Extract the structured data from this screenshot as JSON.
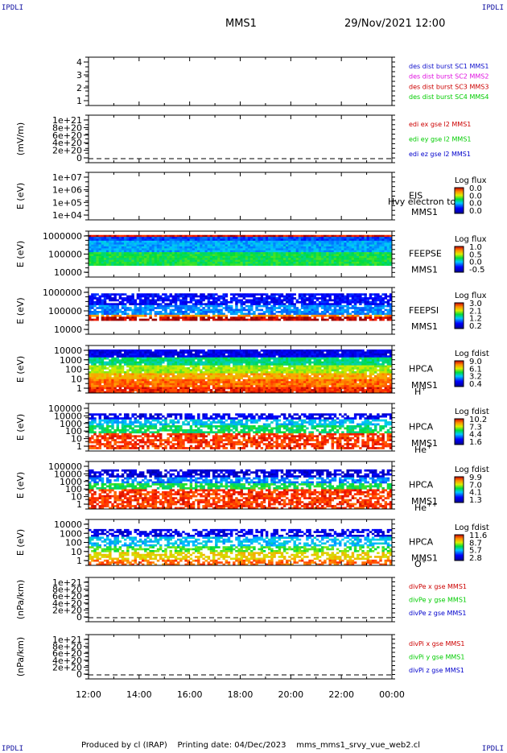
{
  "corner_label": "IPDLI",
  "header": {
    "mission": "MMS1",
    "date": "29/Nov/2021 12:00"
  },
  "footer": {
    "produced": "Produced by cl (IRAP)",
    "printing": "Printing date: 04/Dec/2023",
    "file": "mms_mms1_srvy_vue_web2.cl"
  },
  "x_ticks": [
    "12:00",
    "14:00",
    "16:00",
    "18:00",
    "20:00",
    "22:00",
    "00:00"
  ],
  "colors": {
    "c1": "#1010cc",
    "c2": "#e010e0",
    "c3": "#cc0000",
    "c4": "#00cc00",
    "red": "#cc0000",
    "green": "#00cc00",
    "blue": "#0000cc"
  },
  "chart_data": [
    {
      "type": "line",
      "panel": "burst",
      "ylabel": "",
      "yticks": [
        "4",
        "3",
        "2",
        "1"
      ],
      "ylim": [
        0.5,
        4.5
      ],
      "legend": [
        "des dist burst SC1 MMS1",
        "des dist burst SC2 MMS2",
        "des dist burst SC3 MMS3",
        "des dist burst SC4 MMS4"
      ]
    },
    {
      "type": "line",
      "panel": "edi",
      "ylabel": "(mV/m)",
      "yticks": [
        "1e+21",
        "8e+20",
        "6e+20",
        "4e+20",
        "2e+20",
        "0"
      ],
      "ylim": [
        0,
        1e+21
      ],
      "legend": [
        "edi ex gse l2 MMS1",
        "edi ey gse l2 MMS1",
        "edi ez gse l2 MMS1"
      ]
    },
    {
      "type": "heatmap",
      "panel": "eis",
      "ylabel": "E (eV)",
      "yticks": [
        "1e+07",
        "1e+06",
        "1e+05",
        "1e+04"
      ],
      "ylim": [
        10000,
        10000000
      ],
      "label": [
        "EIS",
        "MMS1"
      ],
      "overlay": "Hvy electron to",
      "cb_title": "Log flux",
      "cb_ticks": [
        "0.0",
        "0.0",
        "0.0",
        "0.0"
      ]
    },
    {
      "type": "heatmap",
      "panel": "feepse",
      "ylabel": "E (eV)",
      "yticks": [
        "1000000",
        "100000",
        "10000"
      ],
      "ylim": [
        10000,
        1000000
      ],
      "label": [
        "FEEPSE",
        "MMS1"
      ],
      "cb_title": "Log flux",
      "cb_ticks": [
        "1.0",
        "0.5",
        "0.0",
        "-0.5"
      ]
    },
    {
      "type": "heatmap",
      "panel": "feepsi",
      "ylabel": "E (eV)",
      "yticks": [
        "1000000",
        "100000",
        "10000"
      ],
      "ylim": [
        10000,
        1000000
      ],
      "label": [
        "FEEPSI",
        "MMS1"
      ],
      "cb_title": "Log flux",
      "cb_ticks": [
        "3.0",
        "2.1",
        "1.2",
        "0.2"
      ]
    },
    {
      "type": "heatmap",
      "panel": "hpca-h",
      "ylabel": "E (eV)",
      "yticks": [
        "10000",
        "1000",
        "100",
        "10",
        "1"
      ],
      "ylim": [
        1,
        40000
      ],
      "label": [
        "HPCA",
        "MMS1"
      ],
      "species": "H",
      "charge": "+",
      "cb_title": "Log fdist",
      "cb_ticks": [
        "9.0",
        "6.1",
        "3.2",
        "0.4"
      ]
    },
    {
      "type": "heatmap",
      "panel": "hpca-he",
      "ylabel": "E (eV)",
      "yticks": [
        "100000",
        "10000",
        "1000",
        "100",
        "10",
        "1"
      ],
      "ylim": [
        1,
        100000
      ],
      "label": [
        "HPCA",
        "MMS1"
      ],
      "species": "He",
      "charge": "+",
      "cb_title": "Log fdist",
      "cb_ticks": [
        "10.2",
        "7.3",
        "4.4",
        "1.6"
      ]
    },
    {
      "type": "heatmap",
      "panel": "hpca-he2",
      "ylabel": "E (eV)",
      "yticks": [
        "100000",
        "10000",
        "1000",
        "100",
        "10",
        "1"
      ],
      "ylim": [
        1,
        100000
      ],
      "label": [
        "HPCA",
        "MMS1"
      ],
      "species": "He",
      "charge": "++",
      "cb_title": "Log fdist",
      "cb_ticks": [
        "9.9",
        "7.0",
        "4.1",
        "1.3"
      ]
    },
    {
      "type": "heatmap",
      "panel": "hpca-o",
      "ylabel": "E (eV)",
      "yticks": [
        "10000",
        "1000",
        "100",
        "10",
        "1"
      ],
      "ylim": [
        1,
        40000
      ],
      "label": [
        "HPCA",
        "MMS1"
      ],
      "species": "O",
      "charge": "+",
      "cb_title": "Log fdist",
      "cb_ticks": [
        "11.6",
        "8.7",
        "5.7",
        "2.8"
      ]
    },
    {
      "type": "line",
      "panel": "divpe",
      "ylabel": "(nPa/km)",
      "yticks": [
        "1e+21",
        "8e+20",
        "6e+20",
        "4e+20",
        "2e+20",
        "0"
      ],
      "ylim": [
        0,
        1e+21
      ],
      "legend": [
        "divPe x gse MMS1",
        "divPe y gse MMS1",
        "divPe z gse MMS1"
      ]
    },
    {
      "type": "line",
      "panel": "divpi",
      "ylabel": "(nPa/km)",
      "yticks": [
        "1e+21",
        "8e+20",
        "6e+20",
        "4e+20",
        "2e+20",
        "0"
      ],
      "ylim": [
        0,
        1e+21
      ],
      "legend": [
        "divPi x gse MMS1",
        "divPi y gse MMS1",
        "divPi z gse MMS1"
      ]
    }
  ]
}
